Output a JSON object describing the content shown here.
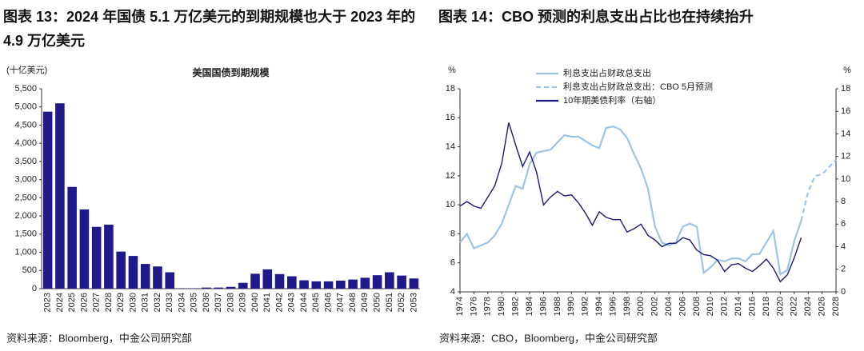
{
  "chart_data": [
    {
      "type": "bar",
      "title": "图表 13：2024 年国债 5.1 万亿美元的到期规模也大于 2023 年的 4.9 万亿美元",
      "subtitle": "美国国债到期规模",
      "y_label": "(十亿美元)",
      "note": "资料来源：Bloomberg，中金公司研究部",
      "color": "#1f1a8c",
      "categories": [
        "2023",
        "2024",
        "2025",
        "2026",
        "2027",
        "2028",
        "2029",
        "2030",
        "2031",
        "2032",
        "2033",
        "2034",
        "2035",
        "2036",
        "2037",
        "2038",
        "2039",
        "2040",
        "2041",
        "2042",
        "2043",
        "2044",
        "2045",
        "2046",
        "2047",
        "2048",
        "2049",
        "2050",
        "2051",
        "2052",
        "2053"
      ],
      "values": [
        4870,
        5100,
        2800,
        2180,
        1700,
        1760,
        1020,
        900,
        680,
        610,
        450,
        5,
        10,
        30,
        30,
        50,
        160,
        410,
        530,
        400,
        340,
        230,
        200,
        200,
        220,
        250,
        300,
        370,
        450,
        360,
        280
      ],
      "ylim": [
        0,
        5500
      ],
      "yticks": [
        0,
        500,
        {
          "value": 1000,
          "label": "1,000"
        },
        {
          "value": 1500,
          "label": "1,500"
        },
        {
          "value": 2000,
          "label": "2,000"
        },
        {
          "value": 2500,
          "label": "2,500"
        },
        {
          "value": 3000,
          "label": "3,000"
        },
        {
          "value": 3500,
          "label": "3,500"
        },
        {
          "value": 4000,
          "label": "4,000"
        },
        {
          "value": 4500,
          "label": "4,500"
        },
        {
          "value": 5000,
          "label": "5,000"
        },
        {
          "value": 5500,
          "label": "5,500"
        }
      ]
    },
    {
      "type": "line",
      "title": "图表 14：CBO 预测的利息支出占比也在持续抬升",
      "y_label": "%",
      "y2_label": "%",
      "note": "资料来源：CBO，Bloomberg，中金公司研究部",
      "legend": "upper left",
      "xlim": [
        1974,
        2028
      ],
      "xticks": [
        1974,
        1976,
        1978,
        1980,
        1982,
        1984,
        1986,
        1988,
        1990,
        1992,
        1994,
        1996,
        1998,
        2000,
        2002,
        2004,
        2006,
        2008,
        2010,
        2012,
        2014,
        2016,
        2018,
        2020,
        2022,
        2024,
        2026,
        2028
      ],
      "ylim": [
        4,
        18
      ],
      "yticks": [
        4,
        6,
        8,
        10,
        12,
        14,
        16,
        18
      ],
      "y2lim": [
        0,
        18
      ],
      "y2ticks": [
        0,
        2,
        4,
        6,
        8,
        10,
        12,
        14,
        16,
        18
      ],
      "series": [
        {
          "name": "利息支出占财政总支出",
          "color": "#9dc3e6",
          "style": "solid",
          "x": [
            1974,
            1975,
            1976,
            1977,
            1978,
            1979,
            1980,
            1981,
            1982,
            1983,
            1984,
            1985,
            1986,
            1987,
            1988,
            1989,
            1990,
            1991,
            1992,
            1993,
            1994,
            1995,
            1996,
            1997,
            1998,
            1999,
            2000,
            2001,
            2002,
            2003,
            2004,
            2005,
            2006,
            2007,
            2008,
            2009,
            2010,
            2011,
            2012,
            2013,
            2014,
            2015,
            2016,
            2017,
            2018,
            2019,
            2020,
            2021,
            2022,
            2023
          ],
          "values": [
            7.4,
            8.0,
            7.0,
            7.2,
            7.4,
            7.9,
            8.7,
            10.0,
            11.3,
            11.1,
            12.8,
            13.6,
            13.7,
            13.8,
            14.3,
            14.8,
            14.7,
            14.7,
            14.4,
            14.1,
            13.9,
            15.3,
            15.4,
            15.2,
            14.6,
            13.5,
            12.5,
            11.1,
            8.5,
            7.4,
            7.2,
            7.4,
            8.5,
            8.7,
            8.5,
            5.3,
            5.7,
            6.2,
            6.1,
            6.3,
            6.3,
            6.1,
            6.6,
            6.6,
            7.4,
            8.2,
            5.2,
            5.5,
            7.5,
            8.9
          ]
        },
        {
          "name": "利息支出占财政总支出：CBO 5月预测",
          "color": "#9dc3e6",
          "style": "dashed",
          "x": [
            2023,
            2024,
            2025,
            2026,
            2027,
            2028
          ],
          "values": [
            8.9,
            10.9,
            12.0,
            12.1,
            12.6,
            13.1
          ]
        },
        {
          "name": "10年期美债利率（右轴）",
          "color": "#1a1a7a",
          "style": "solid",
          "axis": "y2",
          "x": [
            1974,
            1975,
            1976,
            1977,
            1978,
            1979,
            1980,
            1981,
            1982,
            1983,
            1984,
            1985,
            1986,
            1987,
            1988,
            1989,
            1990,
            1991,
            1992,
            1993,
            1994,
            1995,
            1996,
            1997,
            1998,
            1999,
            2000,
            2001,
            2002,
            2003,
            2004,
            2005,
            2006,
            2007,
            2008,
            2009,
            2010,
            2011,
            2012,
            2013,
            2014,
            2015,
            2016,
            2017,
            2018,
            2019,
            2020,
            2021,
            2022,
            2023
          ],
          "values": [
            7.6,
            8.0,
            7.6,
            7.4,
            8.4,
            9.4,
            11.4,
            15.0,
            13.0,
            11.1,
            12.4,
            10.6,
            7.7,
            8.4,
            8.9,
            8.5,
            8.6,
            7.9,
            7.0,
            5.9,
            7.1,
            6.6,
            6.4,
            6.4,
            5.3,
            5.6,
            6.0,
            5.0,
            4.6,
            4.0,
            4.3,
            4.3,
            4.8,
            4.6,
            3.7,
            3.3,
            3.2,
            2.8,
            1.8,
            2.4,
            2.5,
            2.1,
            1.8,
            2.3,
            2.9,
            2.1,
            0.9,
            1.5,
            3.0,
            4.8
          ]
        }
      ]
    }
  ]
}
